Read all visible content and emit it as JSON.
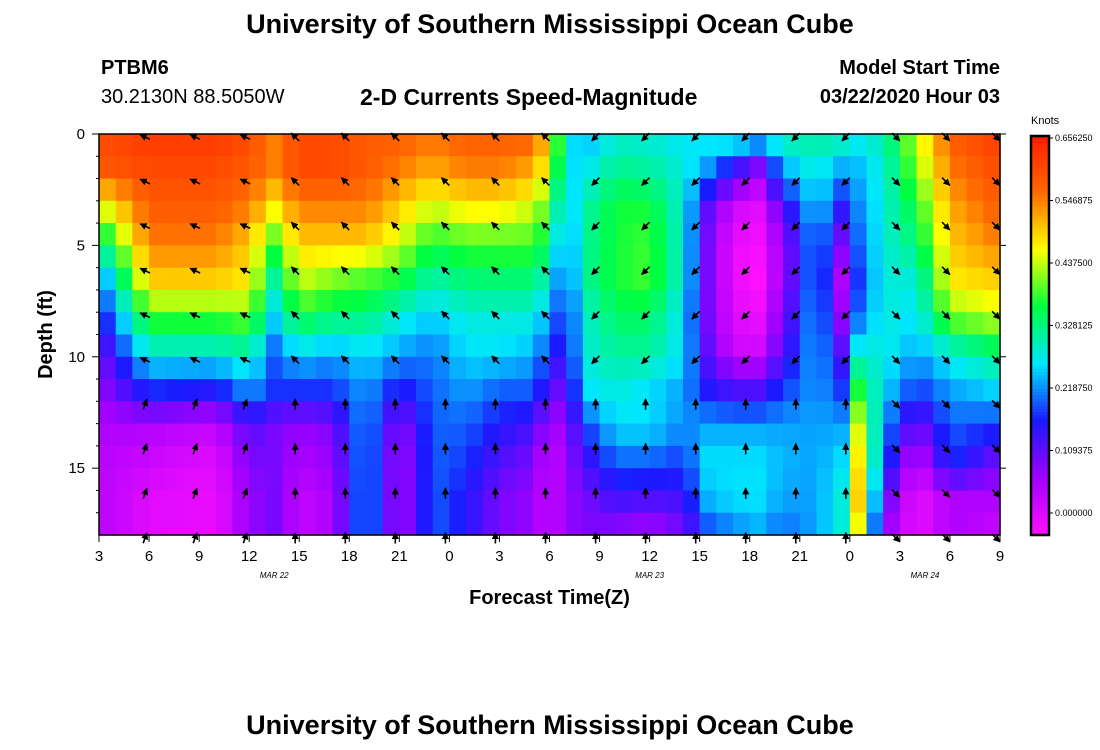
{
  "page": {
    "title": "University of Southern Mississippi Ocean Cube",
    "footer_title": "University of Southern Mississippi Ocean Cube",
    "station": "PTBM6",
    "location": "30.2130N 88.5050W",
    "plot_title": "2-D Currents Speed-Magnitude",
    "model_start_label": "Model Start Time",
    "model_start_value": "03/22/2020 Hour 03"
  },
  "chart_data": {
    "type": "heatmap",
    "title": "2-D Currents Speed-Magnitude",
    "xlabel": "Forecast Time(Z)",
    "ylabel": "Depth (ft)",
    "x_tick_labels": [
      "3",
      "6",
      "9",
      "12",
      "15",
      "18",
      "21",
      "0",
      "3",
      "6",
      "9",
      "12",
      "15",
      "18",
      "21",
      "0",
      "3",
      "6",
      "9"
    ],
    "x_hours": [
      0,
      54
    ],
    "x_date_labels": [
      {
        "label": "MAR 22",
        "hour": 10.5
      },
      {
        "label": "MAR 23",
        "hour": 33
      },
      {
        "label": "MAR 24",
        "hour": 49.5
      }
    ],
    "y_ticks": [
      0,
      5,
      10,
      15
    ],
    "ylim": [
      0,
      18
    ],
    "y_inverted": true,
    "colorbar": {
      "label": "Knots",
      "ticks": [
        "0.656250",
        "0.546875",
        "0.437500",
        "0.328125",
        "0.218750",
        "0.109375",
        "0.000000"
      ],
      "range": [
        0,
        0.65625
      ],
      "palette": [
        "#ff10ff",
        "#a000ff",
        "#1a1aff",
        "#00e6ff",
        "#00ff40",
        "#ffff00",
        "#ff6a00",
        "#ff1a00"
      ]
    },
    "speed_profiles": [
      {
        "hour": 0,
        "speeds": [
          0.6,
          0.58,
          0.45,
          0.33,
          0.22,
          0.17,
          0.12,
          0.1,
          0.08,
          0.07,
          0.07,
          0.07
        ]
      },
      {
        "hour": 3,
        "speeds": [
          0.62,
          0.6,
          0.58,
          0.55,
          0.5,
          0.4,
          0.3,
          0.2,
          0.08,
          0.05,
          0.03,
          0.03
        ]
      },
      {
        "hour": 7,
        "speeds": [
          0.62,
          0.6,
          0.58,
          0.55,
          0.5,
          0.4,
          0.3,
          0.18,
          0.06,
          0.03,
          0.02,
          0.02
        ]
      },
      {
        "hour": 9,
        "speeds": [
          0.6,
          0.58,
          0.55,
          0.5,
          0.48,
          0.42,
          0.32,
          0.25,
          0.15,
          0.12,
          0.1,
          0.1
        ]
      },
      {
        "hour": 10.5,
        "speeds": [
          0.55,
          0.55,
          0.48,
          0.4,
          0.33,
          0.28,
          0.22,
          0.2,
          0.12,
          0.12,
          0.12,
          0.12
        ]
      },
      {
        "hour": 12,
        "speeds": [
          0.6,
          0.6,
          0.55,
          0.5,
          0.45,
          0.38,
          0.28,
          0.2,
          0.1,
          0.08,
          0.06,
          0.06
        ]
      },
      {
        "hour": 14,
        "speeds": [
          0.6,
          0.6,
          0.55,
          0.5,
          0.42,
          0.35,
          0.25,
          0.2,
          0.12,
          0.1,
          0.08,
          0.08
        ]
      },
      {
        "hour": 16,
        "speeds": [
          0.58,
          0.58,
          0.55,
          0.5,
          0.4,
          0.35,
          0.28,
          0.25,
          0.25,
          0.25,
          0.25,
          0.25
        ]
      },
      {
        "hour": 18,
        "speeds": [
          0.58,
          0.55,
          0.5,
          0.45,
          0.38,
          0.3,
          0.25,
          0.18,
          0.1,
          0.08,
          0.08,
          0.08
        ]
      },
      {
        "hour": 20,
        "speeds": [
          0.56,
          0.52,
          0.45,
          0.38,
          0.32,
          0.27,
          0.23,
          0.22,
          0.22,
          0.22,
          0.22,
          0.22
        ]
      },
      {
        "hour": 22,
        "speeds": [
          0.58,
          0.55,
          0.48,
          0.4,
          0.35,
          0.3,
          0.28,
          0.25,
          0.22,
          0.2,
          0.18,
          0.18
        ]
      },
      {
        "hour": 24,
        "speeds": [
          0.58,
          0.55,
          0.48,
          0.4,
          0.35,
          0.3,
          0.28,
          0.22,
          0.18,
          0.15,
          0.12,
          0.12
        ]
      },
      {
        "hour": 26,
        "speeds": [
          0.58,
          0.52,
          0.45,
          0.4,
          0.35,
          0.3,
          0.26,
          0.22,
          0.16,
          0.12,
          0.1,
          0.1
        ]
      },
      {
        "hour": 27,
        "speeds": [
          0.5,
          0.45,
          0.4,
          0.35,
          0.3,
          0.25,
          0.2,
          0.15,
          0.08,
          0.05,
          0.05,
          0.05
        ]
      },
      {
        "hour": 28,
        "speeds": [
          0.3,
          0.28,
          0.25,
          0.22,
          0.2,
          0.18,
          0.16,
          0.12,
          0.1,
          0.1,
          0.1,
          0.1
        ]
      },
      {
        "hour": 29,
        "speeds": [
          0.25,
          0.28,
          0.32,
          0.33,
          0.33,
          0.3,
          0.3,
          0.28,
          0.2,
          0.15,
          0.12,
          0.12
        ]
      },
      {
        "hour": 31,
        "speeds": [
          0.3,
          0.34,
          0.38,
          0.38,
          0.38,
          0.36,
          0.33,
          0.3,
          0.28,
          0.22,
          0.16,
          0.1
        ]
      },
      {
        "hour": 33,
        "speeds": [
          0.3,
          0.33,
          0.38,
          0.4,
          0.4,
          0.36,
          0.33,
          0.28,
          0.28,
          0.22,
          0.15,
          0.08
        ]
      },
      {
        "hour": 35,
        "speeds": [
          0.28,
          0.3,
          0.3,
          0.3,
          0.3,
          0.28,
          0.28,
          0.25,
          0.24,
          0.2,
          0.16,
          0.12
        ]
      },
      {
        "hour": 36.5,
        "speeds": [
          0.3,
          0.24,
          0.14,
          0.12,
          0.12,
          0.12,
          0.14,
          0.18,
          0.25,
          0.28,
          0.26,
          0.2
        ]
      },
      {
        "hour": 38,
        "speeds": [
          0.33,
          0.16,
          0.05,
          0.02,
          0.02,
          0.03,
          0.05,
          0.15,
          0.25,
          0.28,
          0.28,
          0.23
        ]
      },
      {
        "hour": 39.5,
        "speeds": [
          0.3,
          0.1,
          0.03,
          0.01,
          0.0,
          0.02,
          0.05,
          0.15,
          0.25,
          0.28,
          0.28,
          0.25
        ]
      },
      {
        "hour": 41,
        "speeds": [
          0.33,
          0.25,
          0.15,
          0.1,
          0.1,
          0.12,
          0.15,
          0.2,
          0.25,
          0.26,
          0.25,
          0.22
        ]
      },
      {
        "hour": 43,
        "speeds": [
          0.33,
          0.3,
          0.28,
          0.25,
          0.25,
          0.26,
          0.26,
          0.25,
          0.25,
          0.25,
          0.25,
          0.25
        ]
      },
      {
        "hour": 44.5,
        "speeds": [
          0.33,
          0.25,
          0.18,
          0.12,
          0.08,
          0.1,
          0.15,
          0.2,
          0.25,
          0.28,
          0.3,
          0.3
        ]
      },
      {
        "hour": 45.5,
        "speeds": [
          0.3,
          0.26,
          0.24,
          0.22,
          0.2,
          0.22,
          0.3,
          0.38,
          0.45,
          0.48,
          0.5,
          0.45
        ]
      },
      {
        "hour": 47,
        "speeds": [
          0.32,
          0.3,
          0.3,
          0.3,
          0.3,
          0.3,
          0.3,
          0.28,
          0.25,
          0.22,
          0.15,
          0.1
        ]
      },
      {
        "hour": 49,
        "speeds": [
          0.45,
          0.42,
          0.38,
          0.35,
          0.3,
          0.28,
          0.25,
          0.2,
          0.12,
          0.05,
          0.02,
          0.02
        ]
      },
      {
        "hour": 51,
        "speeds": [
          0.58,
          0.55,
          0.52,
          0.5,
          0.48,
          0.42,
          0.3,
          0.25,
          0.22,
          0.2,
          0.08,
          0.08
        ]
      },
      {
        "hour": 54,
        "speeds": [
          0.62,
          0.6,
          0.58,
          0.55,
          0.5,
          0.45,
          0.35,
          0.28,
          0.2,
          0.12,
          0.08,
          0.05
        ]
      }
    ],
    "vector_hours": [
      3,
      6,
      9,
      12,
      15,
      18,
      21,
      24,
      27,
      30,
      33,
      36,
      39,
      42,
      45,
      48,
      51,
      54
    ],
    "vector_depths": [
      0,
      2,
      4,
      6,
      8,
      10,
      12,
      14,
      16,
      18
    ],
    "vector_directions": [
      {
        "from_hour": 0,
        "to_hour": 10,
        "direction": "west-northwest",
        "deep_direction": "north-northeast"
      },
      {
        "from_hour": 10,
        "to_hour": 27,
        "direction": "northwest",
        "deep_direction": "north"
      },
      {
        "from_hour": 27,
        "to_hour": 46,
        "direction": "southwest",
        "deep_direction": "north"
      },
      {
        "from_hour": 46,
        "to_hour": 54,
        "direction": "southeast",
        "deep_direction": "southeast"
      }
    ]
  }
}
